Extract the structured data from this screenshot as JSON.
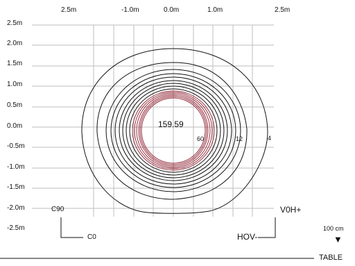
{
  "x_axis": {
    "ticks": [
      "2.5m",
      "-1.0m",
      "0.0m",
      "1.0m",
      "2.5m"
    ]
  },
  "y_axis": {
    "ticks": [
      "2.5m",
      "2.0m",
      "1.5m",
      "1.0m",
      "0.5m",
      "0.0m",
      "-0.5m",
      "-1.0m",
      "-1.5m",
      "-2.0m",
      "-2.5m"
    ]
  },
  "center_value": "159.59",
  "contour_labels": [
    "60",
    "12",
    "4"
  ],
  "corner_labels": {
    "top_left": "C90",
    "bottom_left": "C0",
    "top_right": "V0H+",
    "bottom_right": "HOV-"
  },
  "scale": {
    "label": "100 cm",
    "arrow": "▼",
    "baseline_label": "TABLE"
  },
  "colors": {
    "contour_outer": "#111111",
    "contour_inner": "#8b1a2b",
    "grid": "#bbbbbb"
  }
}
